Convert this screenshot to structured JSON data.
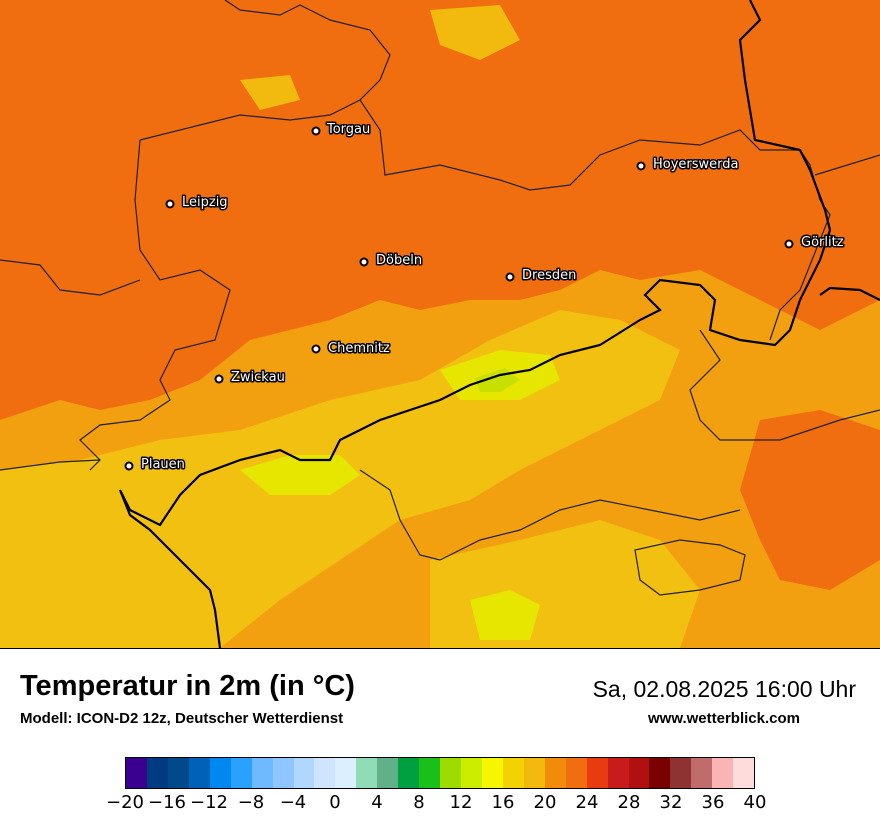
{
  "title": "Temperatur in 2m (in °C)",
  "model": "Modell: ICON-D2 12z, Deutscher Wetterdienst",
  "datetime": "Sa, 02.08.2025 16:00 Uhr",
  "website": "www.wetterblick.com",
  "cities": [
    {
      "name": "Torgau"
    },
    {
      "name": "Hoyerswerda"
    },
    {
      "name": "Leipzig"
    },
    {
      "name": "Görlitz"
    },
    {
      "name": "Döbeln"
    },
    {
      "name": "Dresden"
    },
    {
      "name": "Chemnitz"
    },
    {
      "name": "Zwickau"
    },
    {
      "name": "Plauen"
    }
  ],
  "legend": {
    "colors": [
      "#3a008f",
      "#003a80",
      "#004a8c",
      "#0061b8",
      "#0087f0",
      "#2aa0ff",
      "#6fb9ff",
      "#90c6ff",
      "#b0d8ff",
      "#cfe5ff",
      "#dcefff",
      "#8fdcb6",
      "#62b088",
      "#00a040",
      "#1abf1a",
      "#9cdc00",
      "#ccec00",
      "#f6f600",
      "#f2d200",
      "#f2b90f",
      "#f08c0a",
      "#f06e10",
      "#e83c10",
      "#c81c1c",
      "#b01010",
      "#7a0000",
      "#8e3232",
      "#c06c6c",
      "#fbb4b4",
      "#ffdcdc"
    ],
    "ticks": [
      "−20",
      "−16",
      "−12",
      "−8",
      "−4",
      "0",
      "4",
      "8",
      "12",
      "16",
      "20",
      "24",
      "28",
      "32",
      "36",
      "40"
    ]
  }
}
